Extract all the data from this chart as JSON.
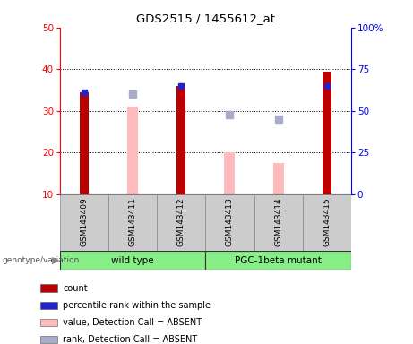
{
  "title": "GDS2515 / 1455612_at",
  "samples": [
    "GSM143409",
    "GSM143411",
    "GSM143412",
    "GSM143413",
    "GSM143414",
    "GSM143415"
  ],
  "red_bars": [
    34.5,
    null,
    36.0,
    null,
    null,
    39.5
  ],
  "pink_bars": [
    null,
    31.0,
    null,
    20.0,
    17.5,
    null
  ],
  "blue_squares_y": [
    34.5,
    null,
    36.0,
    null,
    null,
    36.0
  ],
  "lightblue_squares_y": [
    null,
    34.0,
    null,
    29.0,
    28.0,
    null
  ],
  "ylim_left": [
    10,
    50
  ],
  "ylim_right": [
    0,
    100
  ],
  "yticks_left": [
    10,
    20,
    30,
    40,
    50
  ],
  "yticks_right": [
    0,
    25,
    50,
    75,
    100
  ],
  "yticklabels_right": [
    "0",
    "25",
    "50",
    "75",
    "100%"
  ],
  "red_color": "#bb0000",
  "pink_color": "#ffbbbb",
  "blue_color": "#2222cc",
  "lightblue_color": "#aaaacc",
  "legend_items": [
    {
      "label": "count",
      "color": "#bb0000"
    },
    {
      "label": "percentile rank within the sample",
      "color": "#2222cc"
    },
    {
      "label": "value, Detection Call = ABSENT",
      "color": "#ffbbbb"
    },
    {
      "label": "rank, Detection Call = ABSENT",
      "color": "#aaaacc"
    }
  ]
}
